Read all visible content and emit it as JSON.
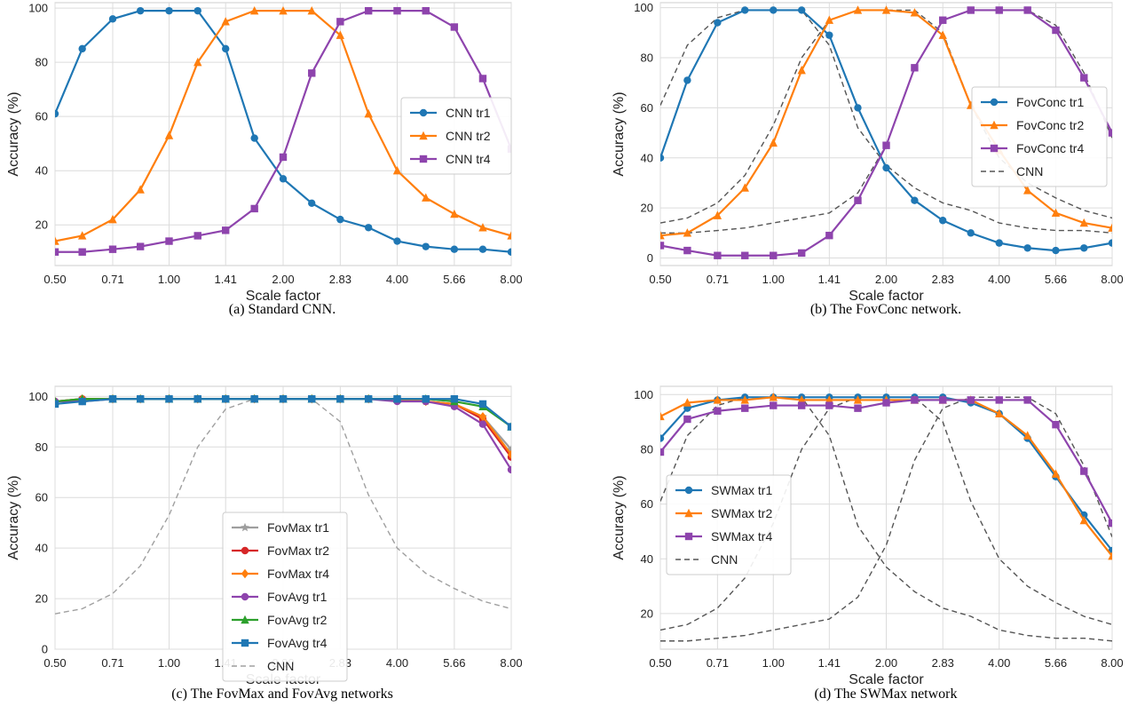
{
  "chart_data": [
    {
      "type": "line",
      "caption": "(a) Standard CNN.",
      "xlabel": "Scale factor",
      "ylabel": "Accuracy (%)",
      "x_scale": "log2",
      "xlim": [
        0.5,
        8.0
      ],
      "ylim": [
        5,
        102
      ],
      "xticks": [
        "0.50",
        "0.71",
        "1.00",
        "1.41",
        "2.00",
        "2.83",
        "4.00",
        "5.66",
        "8.00"
      ],
      "yticks": [
        "20",
        "40",
        "60",
        "80",
        "100"
      ],
      "grid": true,
      "legend_position": "center-right",
      "x": [
        0.5,
        0.59,
        0.71,
        0.84,
        1.0,
        1.19,
        1.41,
        1.68,
        2.0,
        2.38,
        2.83,
        3.36,
        4.0,
        4.76,
        5.66,
        6.73,
        8.0
      ],
      "series": [
        {
          "name": "CNN tr1",
          "color": "#1f77b4",
          "marker": "circle",
          "dash": "solid",
          "values": [
            61,
            85,
            96,
            99,
            99,
            99,
            85,
            52,
            37,
            28,
            22,
            19,
            14,
            12,
            11,
            11,
            10
          ]
        },
        {
          "name": "CNN tr2",
          "color": "#ff7f0e",
          "marker": "triangle",
          "dash": "solid",
          "values": [
            14,
            16,
            22,
            33,
            53,
            80,
            95,
            99,
            99,
            99,
            90,
            61,
            40,
            30,
            24,
            19,
            16
          ]
        },
        {
          "name": "CNN tr4",
          "color": "#8e44ad",
          "marker": "square",
          "dash": "solid",
          "values": [
            10,
            10,
            11,
            12,
            14,
            16,
            18,
            26,
            45,
            76,
            95,
            99,
            99,
            99,
            93,
            74,
            48
          ]
        }
      ]
    },
    {
      "type": "line",
      "caption": "(b) The FovConc network.",
      "xlabel": "Scale factor",
      "ylabel": "Accuracy (%)",
      "x_scale": "log2",
      "xlim": [
        0.5,
        8.0
      ],
      "ylim": [
        -3,
        102
      ],
      "xticks": [
        "0.50",
        "0.71",
        "1.00",
        "1.41",
        "2.00",
        "2.83",
        "4.00",
        "5.66",
        "8.00"
      ],
      "yticks": [
        "0",
        "20",
        "40",
        "60",
        "80",
        "100"
      ],
      "grid": true,
      "legend_position": "center-right",
      "x": [
        0.5,
        0.59,
        0.71,
        0.84,
        1.0,
        1.19,
        1.41,
        1.68,
        2.0,
        2.38,
        2.83,
        3.36,
        4.0,
        4.76,
        5.66,
        6.73,
        8.0
      ],
      "series": [
        {
          "name": "FovConc tr1",
          "color": "#1f77b4",
          "marker": "circle",
          "dash": "solid",
          "values": [
            40,
            71,
            94,
            99,
            99,
            99,
            89,
            60,
            36,
            23,
            15,
            10,
            6,
            4,
            3,
            4,
            6
          ]
        },
        {
          "name": "FovConc tr2",
          "color": "#ff7f0e",
          "marker": "triangle",
          "dash": "solid",
          "values": [
            9,
            10,
            17,
            28,
            46,
            75,
            95,
            99,
            99,
            98,
            89,
            61,
            43,
            27,
            18,
            14,
            12
          ]
        },
        {
          "name": "FovConc tr4",
          "color": "#8e44ad",
          "marker": "square",
          "dash": "solid",
          "values": [
            5,
            3,
            1,
            1,
            1,
            2,
            9,
            23,
            45,
            76,
            95,
            99,
            99,
            99,
            91,
            72,
            50
          ]
        },
        {
          "name": "CNN",
          "color": "#555555",
          "marker": "none",
          "dash": "dashed",
          "values": [
            61,
            85,
            96,
            99,
            99,
            99,
            85,
            52,
            37,
            28,
            22,
            19,
            14,
            12,
            11,
            11,
            10
          ]
        },
        {
          "name": "",
          "color": "#555555",
          "marker": "none",
          "dash": "dashed",
          "values": [
            14,
            16,
            22,
            33,
            53,
            80,
            95,
            99,
            99,
            99,
            90,
            61,
            40,
            30,
            24,
            19,
            16
          ]
        },
        {
          "name": "",
          "color": "#555555",
          "marker": "none",
          "dash": "dashed",
          "values": [
            10,
            10,
            11,
            12,
            14,
            16,
            18,
            26,
            45,
            76,
            95,
            99,
            99,
            99,
            93,
            74,
            48
          ]
        }
      ]
    },
    {
      "type": "line",
      "caption": "(c) The FovMax and FovAvg networks",
      "xlabel": "Scale factor",
      "ylabel": "Accuracy (%)",
      "x_scale": "log2",
      "xlim": [
        0.5,
        8.0
      ],
      "ylim": [
        0,
        104
      ],
      "xticks": [
        "0.50",
        "0.71",
        "1.00",
        "1.41",
        "2.00",
        "2.83",
        "4.00",
        "5.66",
        "8.00"
      ],
      "yticks": [
        "0",
        "20",
        "40",
        "60",
        "80",
        "100"
      ],
      "grid": true,
      "legend_position": "lower-center",
      "x": [
        0.5,
        0.59,
        0.71,
        0.84,
        1.0,
        1.19,
        1.41,
        1.68,
        2.0,
        2.38,
        2.83,
        3.36,
        4.0,
        4.76,
        5.66,
        6.73,
        8.0
      ],
      "series": [
        {
          "name": "FovMax tr1",
          "color": "#9e9e9e",
          "marker": "star",
          "dash": "solid",
          "values": [
            98,
            99,
            99,
            99,
            99,
            99,
            99,
            99,
            99,
            99,
            99,
            99,
            99,
            98,
            97,
            92,
            79
          ]
        },
        {
          "name": "FovMax tr2",
          "color": "#d62728",
          "marker": "circle",
          "dash": "solid",
          "values": [
            98,
            99,
            99,
            99,
            99,
            99,
            99,
            99,
            99,
            99,
            99,
            99,
            99,
            98,
            97,
            91,
            76
          ]
        },
        {
          "name": "FovMax tr4",
          "color": "#ff7f0e",
          "marker": "diamond",
          "dash": "solid",
          "values": [
            98,
            99,
            99,
            99,
            99,
            99,
            99,
            99,
            99,
            99,
            99,
            99,
            99,
            98,
            97,
            92,
            77
          ]
        },
        {
          "name": "FovAvg tr1",
          "color": "#8e44ad",
          "marker": "circle",
          "dash": "solid",
          "values": [
            98,
            98,
            99,
            99,
            99,
            99,
            99,
            99,
            99,
            99,
            99,
            99,
            98,
            98,
            96,
            89,
            71
          ]
        },
        {
          "name": "FovAvg tr2",
          "color": "#2ca02c",
          "marker": "triangle",
          "dash": "solid",
          "values": [
            98,
            99,
            99,
            99,
            99,
            99,
            99,
            99,
            99,
            99,
            99,
            99,
            99,
            99,
            98,
            96,
            88
          ]
        },
        {
          "name": "FovAvg tr4",
          "color": "#1f77b4",
          "marker": "square",
          "dash": "solid",
          "values": [
            97,
            98,
            99,
            99,
            99,
            99,
            99,
            99,
            99,
            99,
            99,
            99,
            99,
            99,
            99,
            97,
            88
          ]
        },
        {
          "name": "CNN",
          "color": "#a0a0a0",
          "marker": "none",
          "dash": "dashed",
          "values": [
            14,
            16,
            22,
            33,
            53,
            80,
            95,
            99,
            99,
            99,
            90,
            61,
            40,
            30,
            24,
            19,
            16
          ]
        }
      ]
    },
    {
      "type": "line",
      "caption": "(d) The SWMax network",
      "xlabel": "Scale factor",
      "ylabel": "Accuracy (%)",
      "x_scale": "log2",
      "xlim": [
        0.5,
        8.0
      ],
      "ylim": [
        7,
        103
      ],
      "xticks": [
        "0.50",
        "0.71",
        "1.00",
        "1.41",
        "2.00",
        "2.83",
        "4.00",
        "5.66",
        "8.00"
      ],
      "yticks": [
        "20",
        "40",
        "60",
        "80",
        "100"
      ],
      "grid": true,
      "legend_position": "center-left",
      "x": [
        0.5,
        0.59,
        0.71,
        0.84,
        1.0,
        1.19,
        1.41,
        1.68,
        2.0,
        2.38,
        2.83,
        3.36,
        4.0,
        4.76,
        5.66,
        6.73,
        8.0
      ],
      "series": [
        {
          "name": "SWMax tr1",
          "color": "#1f77b4",
          "marker": "circle",
          "dash": "solid",
          "values": [
            84,
            95,
            98,
            99,
            99,
            99,
            99,
            99,
            99,
            99,
            99,
            97,
            93,
            84,
            70,
            56,
            43
          ]
        },
        {
          "name": "SWMax tr2",
          "color": "#ff7f0e",
          "marker": "triangle",
          "dash": "solid",
          "values": [
            92,
            97,
            98,
            98,
            99,
            98,
            98,
            98,
            98,
            98,
            98,
            98,
            93,
            85,
            71,
            54,
            41
          ]
        },
        {
          "name": "SWMax tr4",
          "color": "#8e44ad",
          "marker": "square",
          "dash": "solid",
          "values": [
            79,
            91,
            94,
            95,
            96,
            96,
            96,
            95,
            97,
            98,
            98,
            98,
            98,
            98,
            89,
            72,
            53
          ]
        },
        {
          "name": "CNN",
          "color": "#555555",
          "marker": "none",
          "dash": "dashed",
          "values": [
            61,
            85,
            96,
            99,
            99,
            99,
            85,
            52,
            37,
            28,
            22,
            19,
            14,
            12,
            11,
            11,
            10
          ]
        },
        {
          "name": "",
          "color": "#555555",
          "marker": "none",
          "dash": "dashed",
          "values": [
            14,
            16,
            22,
            33,
            53,
            80,
            95,
            99,
            99,
            99,
            90,
            61,
            40,
            30,
            24,
            19,
            16
          ]
        },
        {
          "name": "",
          "color": "#555555",
          "marker": "none",
          "dash": "dashed",
          "values": [
            10,
            10,
            11,
            12,
            14,
            16,
            18,
            26,
            45,
            76,
            95,
            99,
            99,
            99,
            93,
            74,
            48
          ]
        }
      ]
    }
  ]
}
